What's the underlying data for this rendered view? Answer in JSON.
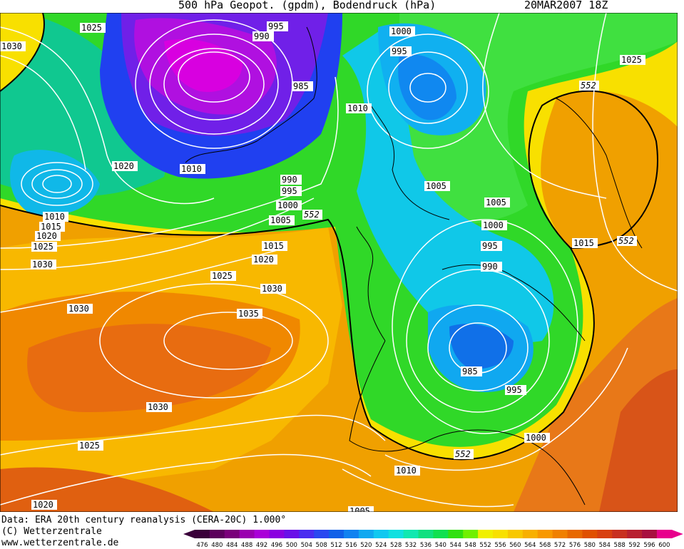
{
  "header": {
    "title": "500 hPa Geopot. (gpdm), Bodendruck (hPa)",
    "datetime": "20MAR2007 18Z"
  },
  "footer": {
    "data_source": "Data: ERA 20th century reanalysis (CERA-20C) 1.000°",
    "copyright": "(C) Wetterzentrale",
    "website": "www.wetterzentrale.de"
  },
  "colors": {
    "contour_line": "#ffffff",
    "contour_552": "#000000",
    "coastline": "#000000"
  },
  "pressure_labels": [
    "1025",
    "1030",
    "995",
    "990",
    "1000",
    "995",
    "985",
    "1010",
    "1025",
    "1020",
    "1010",
    "1005",
    "990",
    "995",
    "1000",
    "1005",
    "1005",
    "1000",
    "995",
    "990",
    "1015",
    "1020",
    "1025",
    "1030",
    "1030",
    "1035",
    "985",
    "995",
    "1010",
    "1015",
    "1020",
    "1025",
    "1030",
    "1030",
    "1025",
    "1020",
    "1000",
    "1010",
    "1005",
    "1015"
  ],
  "geopotential_labels": [
    "552",
    "552",
    "552",
    "552"
  ],
  "legend": {
    "values": [
      "476",
      "480",
      "484",
      "488",
      "492",
      "496",
      "500",
      "504",
      "508",
      "512",
      "516",
      "520",
      "524",
      "528",
      "532",
      "536",
      "540",
      "544",
      "548",
      "552",
      "556",
      "560",
      "564",
      "568",
      "572",
      "576",
      "580",
      "584",
      "588",
      "592",
      "596",
      "600"
    ],
    "colors": [
      "#3a003a",
      "#5c005c",
      "#7a007a",
      "#9a00b0",
      "#aa00d8",
      "#8a00e0",
      "#6a10e8",
      "#4a2cf0",
      "#2a48f0",
      "#1060e8",
      "#1082f0",
      "#10a8f0",
      "#10c8f0",
      "#10e0e0",
      "#10e8b0",
      "#10e080",
      "#10e050",
      "#30e010",
      "#70f000",
      "#f0f000",
      "#f8e000",
      "#f8c800",
      "#f8b000",
      "#f89800",
      "#f08000",
      "#e86800",
      "#e05000",
      "#d84010",
      "#c83020",
      "#b82030",
      "#a81040",
      "#e8008c"
    ]
  }
}
